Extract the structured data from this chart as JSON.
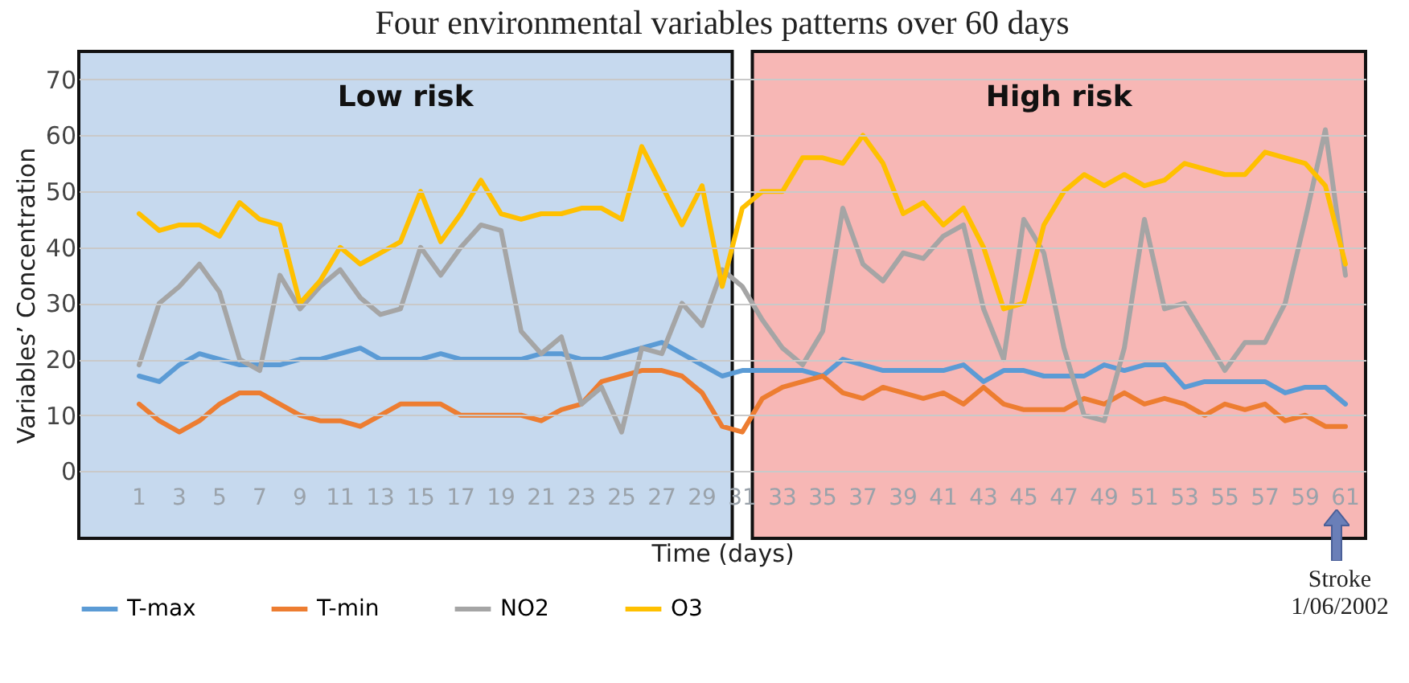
{
  "chart_data": {
    "type": "line",
    "title": "Four environmental variables patterns over 60 days",
    "xlabel": "Time (days)",
    "ylabel": "Variables’ Concentration",
    "x": [
      1,
      2,
      3,
      4,
      5,
      6,
      7,
      8,
      9,
      10,
      11,
      12,
      13,
      14,
      15,
      16,
      17,
      18,
      19,
      20,
      21,
      22,
      23,
      24,
      25,
      26,
      27,
      28,
      29,
      30,
      31,
      32,
      33,
      34,
      35,
      36,
      37,
      38,
      39,
      40,
      41,
      42,
      43,
      44,
      45,
      46,
      47,
      48,
      49,
      50,
      51,
      52,
      53,
      54,
      55,
      56,
      57,
      58,
      59,
      60,
      61
    ],
    "series": [
      {
        "name": "T-max",
        "color": "#5b9bd5",
        "values": [
          17,
          16,
          19,
          21,
          20,
          19,
          19,
          19,
          20,
          20,
          21,
          22,
          20,
          20,
          20,
          21,
          20,
          20,
          20,
          20,
          21,
          21,
          20,
          20,
          21,
          22,
          23,
          21,
          19,
          17,
          18,
          18,
          18,
          18,
          17,
          20,
          19,
          18,
          18,
          18,
          18,
          19,
          16,
          18,
          18,
          17,
          17,
          17,
          19,
          18,
          19,
          19,
          15,
          16,
          16,
          16,
          16,
          14,
          15,
          15,
          12
        ]
      },
      {
        "name": "T-min",
        "color": "#ed7d31",
        "values": [
          12,
          9,
          7,
          9,
          12,
          14,
          14,
          12,
          10,
          9,
          9,
          8,
          10,
          12,
          12,
          12,
          10,
          10,
          10,
          10,
          9,
          11,
          12,
          16,
          17,
          18,
          18,
          17,
          14,
          8,
          7,
          13,
          15,
          16,
          17,
          14,
          13,
          15,
          14,
          13,
          14,
          12,
          15,
          12,
          11,
          11,
          11,
          13,
          12,
          14,
          12,
          13,
          12,
          10,
          12,
          11,
          12,
          9,
          10,
          8,
          8
        ]
      },
      {
        "name": "NO2",
        "color": "#a5a5a5",
        "values": [
          19,
          30,
          33,
          37,
          32,
          20,
          18,
          35,
          29,
          33,
          36,
          31,
          28,
          29,
          40,
          35,
          40,
          44,
          43,
          25,
          21,
          24,
          12,
          15,
          7,
          22,
          21,
          30,
          26,
          36,
          33,
          27,
          22,
          19,
          25,
          47,
          37,
          34,
          39,
          38,
          42,
          44,
          29,
          20,
          45,
          39,
          22,
          10,
          9,
          22,
          45,
          29,
          30,
          24,
          18,
          23,
          23,
          30,
          45,
          61,
          35
        ]
      },
      {
        "name": "O3",
        "color": "#ffc000",
        "values": [
          46,
          43,
          44,
          44,
          42,
          48,
          45,
          44,
          30,
          34,
          40,
          37,
          39,
          41,
          50,
          41,
          46,
          52,
          46,
          45,
          46,
          46,
          47,
          47,
          45,
          58,
          51,
          44,
          51,
          33,
          47,
          50,
          50,
          56,
          56,
          55,
          60,
          55,
          46,
          48,
          44,
          47,
          40,
          29,
          30,
          44,
          50,
          53,
          51,
          53,
          51,
          52,
          55,
          54,
          53,
          53,
          57,
          56,
          55,
          51,
          37
        ]
      }
    ],
    "xlim": [
      -2,
      62
    ],
    "xticks": [
      1,
      3,
      5,
      7,
      9,
      11,
      13,
      15,
      17,
      19,
      21,
      23,
      25,
      27,
      29,
      31,
      33,
      35,
      37,
      39,
      41,
      43,
      45,
      47,
      49,
      51,
      53,
      55,
      57,
      59,
      61
    ],
    "ylim": [
      -12,
      75
    ],
    "yticks": [
      0,
      10,
      20,
      30,
      40,
      50,
      60,
      70
    ],
    "bands": [
      {
        "axis": "x",
        "from": -2,
        "to": 30.5,
        "label": "Low risk",
        "color": "#c6d9ee"
      },
      {
        "axis": "x",
        "from": 31.5,
        "to": 62,
        "label": "High risk",
        "color": "#f7b7b5"
      }
    ],
    "annotations": [
      "Stroke 1/06/2002"
    ],
    "grid": "y",
    "legend": "bottom",
    "marker": "none",
    "line_style": "solid"
  }
}
